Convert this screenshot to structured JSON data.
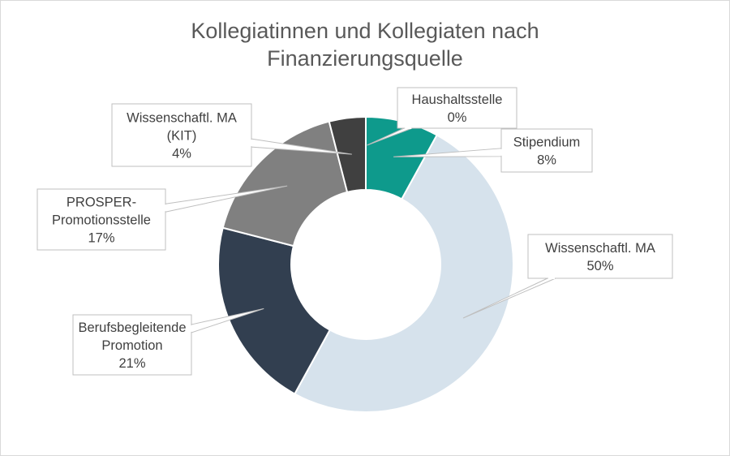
{
  "chart_data": {
    "type": "pie",
    "variant": "doughnut",
    "title_lines": [
      "Kollegiatinnen und Kollegiaten nach",
      "Finanzierungsquelle"
    ],
    "slices": [
      {
        "name": "Haushaltsstelle",
        "label_lines": [
          "Haushaltsstelle",
          "0%"
        ],
        "value": 0,
        "color": "#0d9488"
      },
      {
        "name": "Stipendium",
        "label_lines": [
          "Stipendium",
          "8%"
        ],
        "value": 8,
        "color": "#0e9a8c"
      },
      {
        "name": "Wissenschaftl. MA",
        "label_lines": [
          "Wissenschaftl. MA",
          "50%"
        ],
        "value": 50,
        "color": "#d6e2ec"
      },
      {
        "name": "Berufsbegleitende Promotion",
        "label_lines": [
          "Berufsbegleitende",
          "Promotion",
          "21%"
        ],
        "value": 21,
        "color": "#323f50"
      },
      {
        "name": "PROSPER-Promotionsstelle",
        "label_lines": [
          "PROSPER-",
          "Promotionsstelle",
          "17%"
        ],
        "value": 17,
        "color": "#808080"
      },
      {
        "name": "Wissenschaftl. MA (KIT)",
        "label_lines": [
          "Wissenschaftl. MA",
          "(KIT)",
          "4%"
        ],
        "value": 4,
        "color": "#404040"
      }
    ],
    "legend": "none",
    "data_labels": "callouts"
  }
}
